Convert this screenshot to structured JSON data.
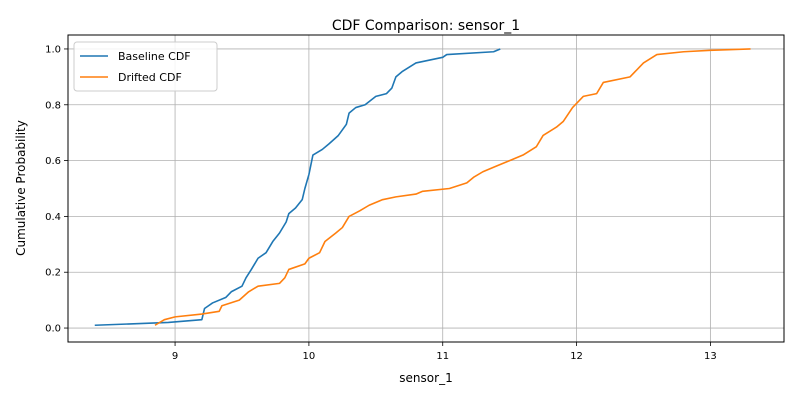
{
  "chart_data": {
    "type": "line",
    "title": "CDF Comparison: sensor_1",
    "xlabel": "sensor_1",
    "ylabel": "Cumulative Probability",
    "xlim": [
      8.2,
      13.55
    ],
    "ylim": [
      -0.05,
      1.05
    ],
    "xticks": [
      9,
      10,
      11,
      12,
      13
    ],
    "yticks": [
      0.0,
      0.2,
      0.4,
      0.6,
      0.8,
      1.0
    ],
    "xtick_labels": [
      "9",
      "10",
      "11",
      "12",
      "13"
    ],
    "ytick_labels": [
      "0.0",
      "0.2",
      "0.4",
      "0.6",
      "0.8",
      "1.0"
    ],
    "grid": true,
    "legend_position": "top-left",
    "series": [
      {
        "name": "Baseline CDF",
        "color": "#1f77b4",
        "points": [
          [
            8.4,
            0.01
          ],
          [
            8.95,
            0.02
          ],
          [
            9.2,
            0.03
          ],
          [
            9.22,
            0.07
          ],
          [
            9.25,
            0.08
          ],
          [
            9.28,
            0.09
          ],
          [
            9.38,
            0.11
          ],
          [
            9.42,
            0.13
          ],
          [
            9.5,
            0.15
          ],
          [
            9.53,
            0.18
          ],
          [
            9.57,
            0.21
          ],
          [
            9.62,
            0.25
          ],
          [
            9.68,
            0.27
          ],
          [
            9.73,
            0.31
          ],
          [
            9.78,
            0.34
          ],
          [
            9.83,
            0.38
          ],
          [
            9.85,
            0.41
          ],
          [
            9.9,
            0.43
          ],
          [
            9.95,
            0.46
          ],
          [
            9.97,
            0.5
          ],
          [
            10.0,
            0.55
          ],
          [
            10.03,
            0.62
          ],
          [
            10.1,
            0.64
          ],
          [
            10.15,
            0.66
          ],
          [
            10.22,
            0.69
          ],
          [
            10.28,
            0.73
          ],
          [
            10.3,
            0.77
          ],
          [
            10.35,
            0.79
          ],
          [
            10.42,
            0.8
          ],
          [
            10.5,
            0.83
          ],
          [
            10.58,
            0.84
          ],
          [
            10.62,
            0.86
          ],
          [
            10.65,
            0.9
          ],
          [
            10.7,
            0.92
          ],
          [
            10.8,
            0.95
          ],
          [
            11.0,
            0.97
          ],
          [
            11.03,
            0.98
          ],
          [
            11.38,
            0.99
          ],
          [
            11.43,
            1.0
          ]
        ]
      },
      {
        "name": "Drifted CDF",
        "color": "#ff7f0e",
        "points": [
          [
            8.85,
            0.01
          ],
          [
            8.92,
            0.03
          ],
          [
            9.0,
            0.04
          ],
          [
            9.2,
            0.05
          ],
          [
            9.33,
            0.06
          ],
          [
            9.35,
            0.08
          ],
          [
            9.48,
            0.1
          ],
          [
            9.55,
            0.13
          ],
          [
            9.62,
            0.15
          ],
          [
            9.78,
            0.16
          ],
          [
            9.82,
            0.18
          ],
          [
            9.85,
            0.21
          ],
          [
            9.97,
            0.23
          ],
          [
            10.0,
            0.25
          ],
          [
            10.08,
            0.27
          ],
          [
            10.12,
            0.31
          ],
          [
            10.2,
            0.34
          ],
          [
            10.25,
            0.36
          ],
          [
            10.3,
            0.4
          ],
          [
            10.38,
            0.42
          ],
          [
            10.45,
            0.44
          ],
          [
            10.55,
            0.46
          ],
          [
            10.65,
            0.47
          ],
          [
            10.8,
            0.48
          ],
          [
            10.85,
            0.49
          ],
          [
            11.05,
            0.5
          ],
          [
            11.18,
            0.52
          ],
          [
            11.23,
            0.54
          ],
          [
            11.3,
            0.56
          ],
          [
            11.4,
            0.58
          ],
          [
            11.5,
            0.6
          ],
          [
            11.6,
            0.62
          ],
          [
            11.7,
            0.65
          ],
          [
            11.75,
            0.69
          ],
          [
            11.85,
            0.72
          ],
          [
            11.9,
            0.74
          ],
          [
            11.97,
            0.79
          ],
          [
            12.05,
            0.83
          ],
          [
            12.15,
            0.84
          ],
          [
            12.2,
            0.88
          ],
          [
            12.4,
            0.9
          ],
          [
            12.5,
            0.95
          ],
          [
            12.6,
            0.98
          ],
          [
            12.8,
            0.99
          ],
          [
            13.0,
            0.995
          ],
          [
            13.3,
            1.0
          ]
        ]
      }
    ]
  }
}
